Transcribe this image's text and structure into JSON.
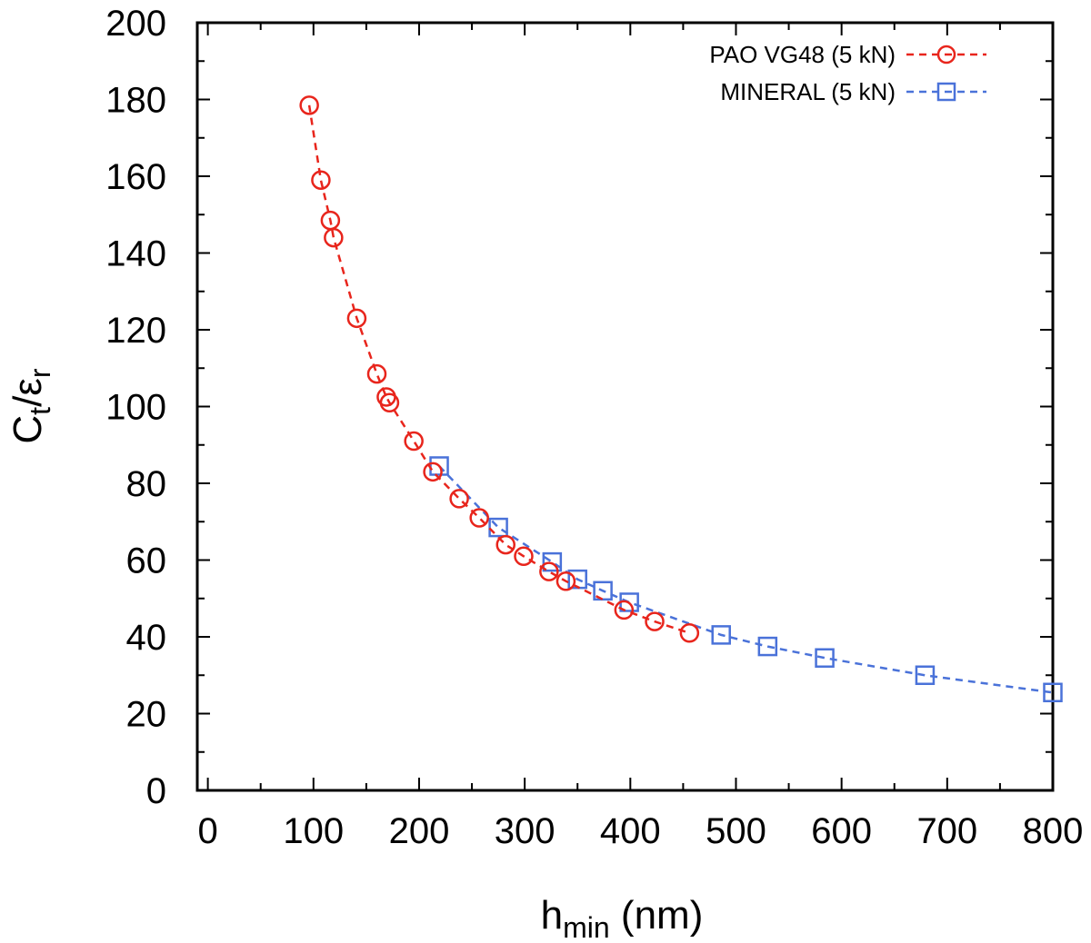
{
  "chart_data": {
    "type": "line",
    "xlabel": {
      "main": "h",
      "sub": "min",
      "suffix": " (nm)"
    },
    "ylabel": {
      "c": "C",
      "c_sub": "t",
      "slash": "/",
      "eps": "ε",
      "eps_sub": "r"
    },
    "xlim": [
      -10,
      800
    ],
    "ylim": [
      0,
      200
    ],
    "x_ticks": [
      0,
      100,
      200,
      300,
      400,
      500,
      600,
      700,
      800
    ],
    "y_ticks": [
      0,
      20,
      40,
      60,
      80,
      100,
      120,
      140,
      160,
      180,
      200
    ],
    "x_tick_labels": [
      "0",
      "100",
      "200",
      "300",
      "400",
      "500",
      "600",
      "700",
      "800"
    ],
    "y_tick_labels": [
      "0",
      "20",
      "40",
      "60",
      "80",
      "100",
      "120",
      "140",
      "160",
      "180",
      "200"
    ],
    "grid": false,
    "legend_position": "top-right",
    "series": [
      {
        "name": "PAO VG48 (5 kN)",
        "color": "#e8251c",
        "marker": "circle",
        "line": "dashed",
        "x": [
          96,
          107,
          116,
          119,
          141,
          160,
          169,
          172,
          195,
          213,
          238,
          257,
          282,
          299,
          323,
          339,
          394,
          423,
          456
        ],
        "y": [
          178.5,
          159,
          148.5,
          144,
          123,
          108.5,
          102.5,
          101,
          91,
          83,
          76,
          71,
          64,
          61,
          57,
          54.5,
          47,
          44,
          41
        ]
      },
      {
        "name": "MINERAL (5 kN)",
        "color": "#4a72d9",
        "marker": "square",
        "line": "dashed",
        "x": [
          219,
          275,
          326,
          350,
          374,
          399,
          486,
          530,
          584,
          679,
          800
        ],
        "y": [
          84.5,
          68.5,
          59.5,
          55,
          52,
          49,
          40.5,
          37.5,
          34.5,
          30,
          25.5
        ]
      }
    ]
  }
}
